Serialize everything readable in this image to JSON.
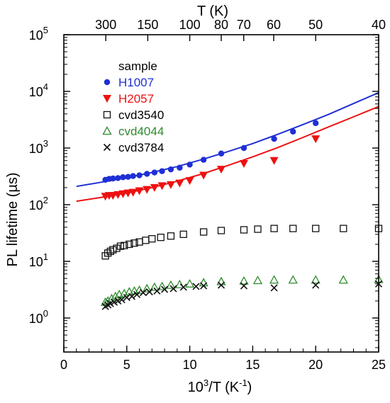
{
  "chart_data": {
    "type": "scatter",
    "xlabel_base": "10",
    "xlabel_sup": "3",
    "xlabel_tail": "/T (K",
    "xlabel_sup2": "-1",
    "xlabel_end": ")",
    "ylabel": "PL lifetime (µs)",
    "top_xlabel": "T (K)",
    "xlim": [
      0,
      25
    ],
    "ylim_log10": [
      -0.6,
      5
    ],
    "y_scale": "log",
    "grid": false,
    "legend_title": "sample",
    "legend_position": "top-left",
    "x_ticks": [
      {
        "v": 0,
        "label": "0"
      },
      {
        "v": 5,
        "label": "5"
      },
      {
        "v": 10,
        "label": "10"
      },
      {
        "v": 15,
        "label": "15"
      },
      {
        "v": 20,
        "label": "20"
      },
      {
        "v": 25,
        "label": "25"
      }
    ],
    "y_ticks": [
      {
        "e": 0,
        "base": "10",
        "exp": "0"
      },
      {
        "e": 1,
        "base": "10",
        "exp": "1"
      },
      {
        "e": 2,
        "base": "10",
        "exp": "2"
      },
      {
        "e": 3,
        "base": "10",
        "exp": "3"
      },
      {
        "e": 4,
        "base": "10",
        "exp": "4"
      },
      {
        "e": 5,
        "base": "10",
        "exp": "5"
      }
    ],
    "top_ticks": [
      {
        "T": 300,
        "label": "300"
      },
      {
        "T": 150,
        "label": "150"
      },
      {
        "T": 100,
        "label": "100"
      },
      {
        "T": 80,
        "label": "80"
      },
      {
        "T": 70,
        "label": "70"
      },
      {
        "T": 60,
        "label": "60"
      },
      {
        "T": 50,
        "label": "50"
      },
      {
        "T": 40,
        "label": "40"
      }
    ],
    "series": [
      {
        "name": "H1007",
        "marker": "circle",
        "color": "#1f2fd6",
        "x": [
          3.3,
          3.6,
          3.9,
          4.3,
          4.7,
          5.1,
          5.5,
          6.0,
          6.6,
          7.2,
          7.8,
          8.5,
          9.2,
          10.0,
          11.1,
          12.5,
          14.3,
          16.7,
          18.2,
          20.0
        ],
        "y": [
          275,
          285,
          290,
          295,
          305,
          310,
          320,
          330,
          350,
          370,
          390,
          420,
          450,
          510,
          620,
          800,
          1000,
          1450,
          1950,
          2750
        ]
      },
      {
        "name": "H2057",
        "marker": "triangle-down",
        "color": "#ee1111",
        "x": [
          3.3,
          3.6,
          3.9,
          4.3,
          4.7,
          5.1,
          5.5,
          6.0,
          6.6,
          7.2,
          7.8,
          8.5,
          9.2,
          10.0,
          11.1,
          12.5,
          14.3,
          16.7,
          20.0
        ],
        "y": [
          140,
          145,
          145,
          150,
          155,
          160,
          165,
          175,
          185,
          200,
          215,
          225,
          240,
          265,
          330,
          420,
          530,
          600,
          1450
        ]
      },
      {
        "name": "cvd3540",
        "marker": "square-open",
        "color": "#111111",
        "x": [
          3.3,
          3.5,
          3.7,
          3.9,
          4.2,
          4.5,
          4.8,
          5.2,
          5.6,
          6.0,
          6.5,
          7.0,
          7.7,
          8.5,
          9.5,
          11.1,
          12.5,
          14.3,
          15.4,
          16.7,
          18.2,
          20.0,
          22.2,
          25.0
        ],
        "y": [
          12.5,
          14.0,
          15.0,
          16.0,
          17.0,
          18.5,
          19.0,
          20.0,
          21.0,
          22.0,
          23.5,
          25.0,
          26.5,
          28.0,
          30.0,
          33.0,
          35.0,
          36.0,
          37.0,
          38.0,
          38.0,
          38.0,
          38.0,
          38.0
        ]
      },
      {
        "name": "cvd4044",
        "marker": "triangle-open",
        "color": "#2e8b2e",
        "x": [
          3.3,
          3.5,
          3.8,
          4.1,
          4.4,
          4.8,
          5.2,
          5.6,
          6.0,
          6.6,
          7.2,
          7.8,
          8.5,
          9.2,
          10.0,
          11.1,
          12.5,
          14.3,
          15.4,
          16.7,
          18.2,
          20.0,
          22.2,
          25.0
        ],
        "y": [
          1.9,
          2.0,
          2.2,
          2.4,
          2.6,
          2.7,
          2.9,
          3.0,
          3.1,
          3.3,
          3.5,
          3.6,
          3.8,
          3.9,
          4.0,
          4.2,
          4.4,
          4.5,
          4.6,
          4.7,
          4.7,
          4.7,
          4.7,
          4.8
        ]
      },
      {
        "name": "cvd3784",
        "marker": "cross",
        "color": "#111111",
        "x": [
          3.3,
          3.5,
          3.7,
          4.0,
          4.3,
          4.6,
          5.0,
          5.4,
          5.8,
          6.3,
          6.8,
          7.4,
          8.0,
          8.7,
          9.5,
          10.5,
          11.1,
          12.5,
          14.3,
          16.7,
          20.0,
          25.0
        ],
        "y": [
          1.6,
          1.7,
          1.8,
          1.9,
          2.0,
          2.1,
          2.3,
          2.4,
          2.6,
          2.8,
          2.9,
          3.0,
          3.2,
          3.3,
          3.5,
          3.6,
          3.7,
          3.8,
          3.7,
          3.4,
          3.8,
          4.0
        ]
      }
    ],
    "fits": [
      {
        "series": "H1007",
        "color": "#1f2fd6",
        "x": [
          1,
          3,
          5,
          7,
          9,
          11,
          13,
          15,
          17,
          19,
          21,
          23,
          25
        ],
        "y": [
          210,
          250,
          300,
          370,
          470,
          630,
          860,
          1200,
          1750,
          2600,
          3900,
          6100,
          9500
        ]
      },
      {
        "series": "H2057",
        "color": "#ee1111",
        "x": [
          1,
          3,
          5,
          7,
          9,
          11,
          13,
          15,
          17,
          19,
          21,
          23,
          25
        ],
        "y": [
          115,
          135,
          160,
          200,
          260,
          350,
          490,
          700,
          1020,
          1540,
          2350,
          3550,
          5400
        ]
      }
    ]
  }
}
